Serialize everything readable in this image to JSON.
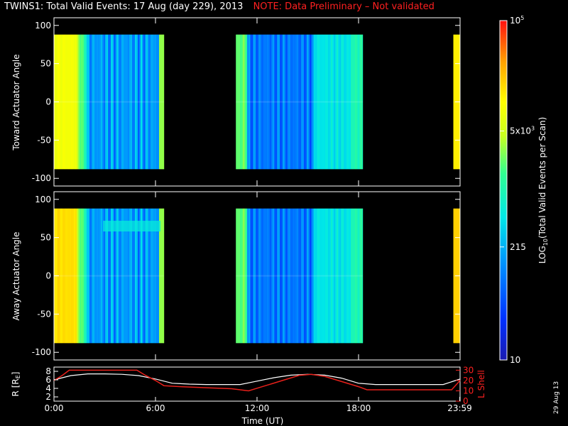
{
  "title": {
    "main": "TWINS1: Total Valid Events: 17 Aug (day 229), 2013",
    "note": "NOTE: Data Preliminary – Not validated"
  },
  "side_date": "29 Aug 13",
  "colors": {
    "note": "#ff2020",
    "r_line": "#ffffff",
    "l_line": "#e8201a",
    "background": "#000000"
  },
  "chart_data": [
    {
      "type": "heatmap",
      "ylabel": "Toward Actuator Angle",
      "ylim": [
        -110,
        110
      ],
      "yticks": [
        100,
        50,
        0,
        -50,
        -100
      ],
      "ytick_labels": [
        "100",
        "50",
        "0",
        "-50",
        "-100"
      ],
      "xlim_hours": [
        0,
        24
      ],
      "data_intervals_hours": [
        [
          0.0,
          6.5
        ],
        [
          10.75,
          18.25
        ],
        [
          23.6,
          24.0
        ]
      ],
      "angle_range": [
        -88,
        88
      ]
    },
    {
      "type": "heatmap",
      "ylabel": "Away Actuator Angle",
      "ylim": [
        -110,
        110
      ],
      "yticks": [
        100,
        50,
        0,
        -50,
        -100
      ],
      "ytick_labels": [
        "100",
        "50",
        "0",
        "-50",
        "-100"
      ],
      "xlim_hours": [
        0,
        24
      ],
      "data_intervals_hours": [
        [
          0.0,
          6.5
        ],
        [
          10.75,
          18.25
        ],
        [
          23.6,
          24.0
        ]
      ],
      "angle_range": [
        -88,
        88
      ]
    },
    {
      "type": "line",
      "ylabel_left": "R [R",
      "ylabel_left_sub": "E",
      "ylabel_left_close": "]",
      "ylabel_right": "L Shell",
      "ylim_left": [
        1,
        9
      ],
      "yticks_left": [
        2,
        4,
        6,
        8
      ],
      "ytick_labels_left": [
        "2",
        "4",
        "6",
        "8"
      ],
      "ylim_right": [
        0,
        33
      ],
      "yticks_right": [
        0,
        10,
        20,
        30
      ],
      "ytick_labels_right": [
        "0",
        "10",
        "20",
        "30"
      ],
      "xlabel": "Time (UT)",
      "xticks_hours": [
        0,
        6,
        12,
        18,
        23.98
      ],
      "xtick_labels": [
        "0:00",
        "6:00",
        "12:00",
        "18:00",
        "23:59"
      ],
      "series": [
        {
          "axis": "left",
          "x": [
            0,
            1,
            2,
            3,
            4,
            5,
            6,
            7,
            8,
            9,
            10,
            11,
            12,
            13,
            14,
            15,
            16,
            17,
            18,
            19,
            20,
            21,
            22,
            23,
            24
          ],
          "values": [
            6.0,
            7.0,
            7.4,
            7.4,
            7.3,
            7.0,
            6.2,
            5.2,
            5.0,
            4.9,
            4.9,
            4.9,
            5.7,
            6.5,
            7.1,
            7.3,
            7.1,
            6.4,
            5.2,
            4.9,
            4.9,
            4.9,
            4.9,
            4.9,
            6.2
          ]
        },
        {
          "axis": "right",
          "x": [
            0,
            0.5,
            0.9,
            4.9,
            5.4,
            6.0,
            6.5,
            7.5,
            9.0,
            10.5,
            11.5,
            12.5,
            13.5,
            14.5,
            15.2,
            16.0,
            17.0,
            18.0,
            18.5,
            19.5,
            21.0,
            22.5,
            23.5,
            24.0
          ],
          "values": [
            20,
            25,
            30,
            30,
            25,
            20,
            15,
            14,
            13,
            12,
            10,
            15,
            20,
            25,
            26,
            24,
            19,
            14,
            11,
            11,
            11,
            11,
            11,
            20
          ]
        }
      ]
    }
  ],
  "colorbar": {
    "label": "LOG",
    "label_sub": "10",
    "label_rest": "(Total Valid Events per Scan)",
    "ticks": [
      {
        "value": 10,
        "text": "10"
      },
      {
        "value": 215,
        "text": "215"
      },
      {
        "value": 5000,
        "text": "5x10",
        "sup": "3"
      },
      {
        "value": 100000,
        "text": "10",
        "sup": "5"
      }
    ],
    "range": [
      10,
      100000
    ]
  }
}
